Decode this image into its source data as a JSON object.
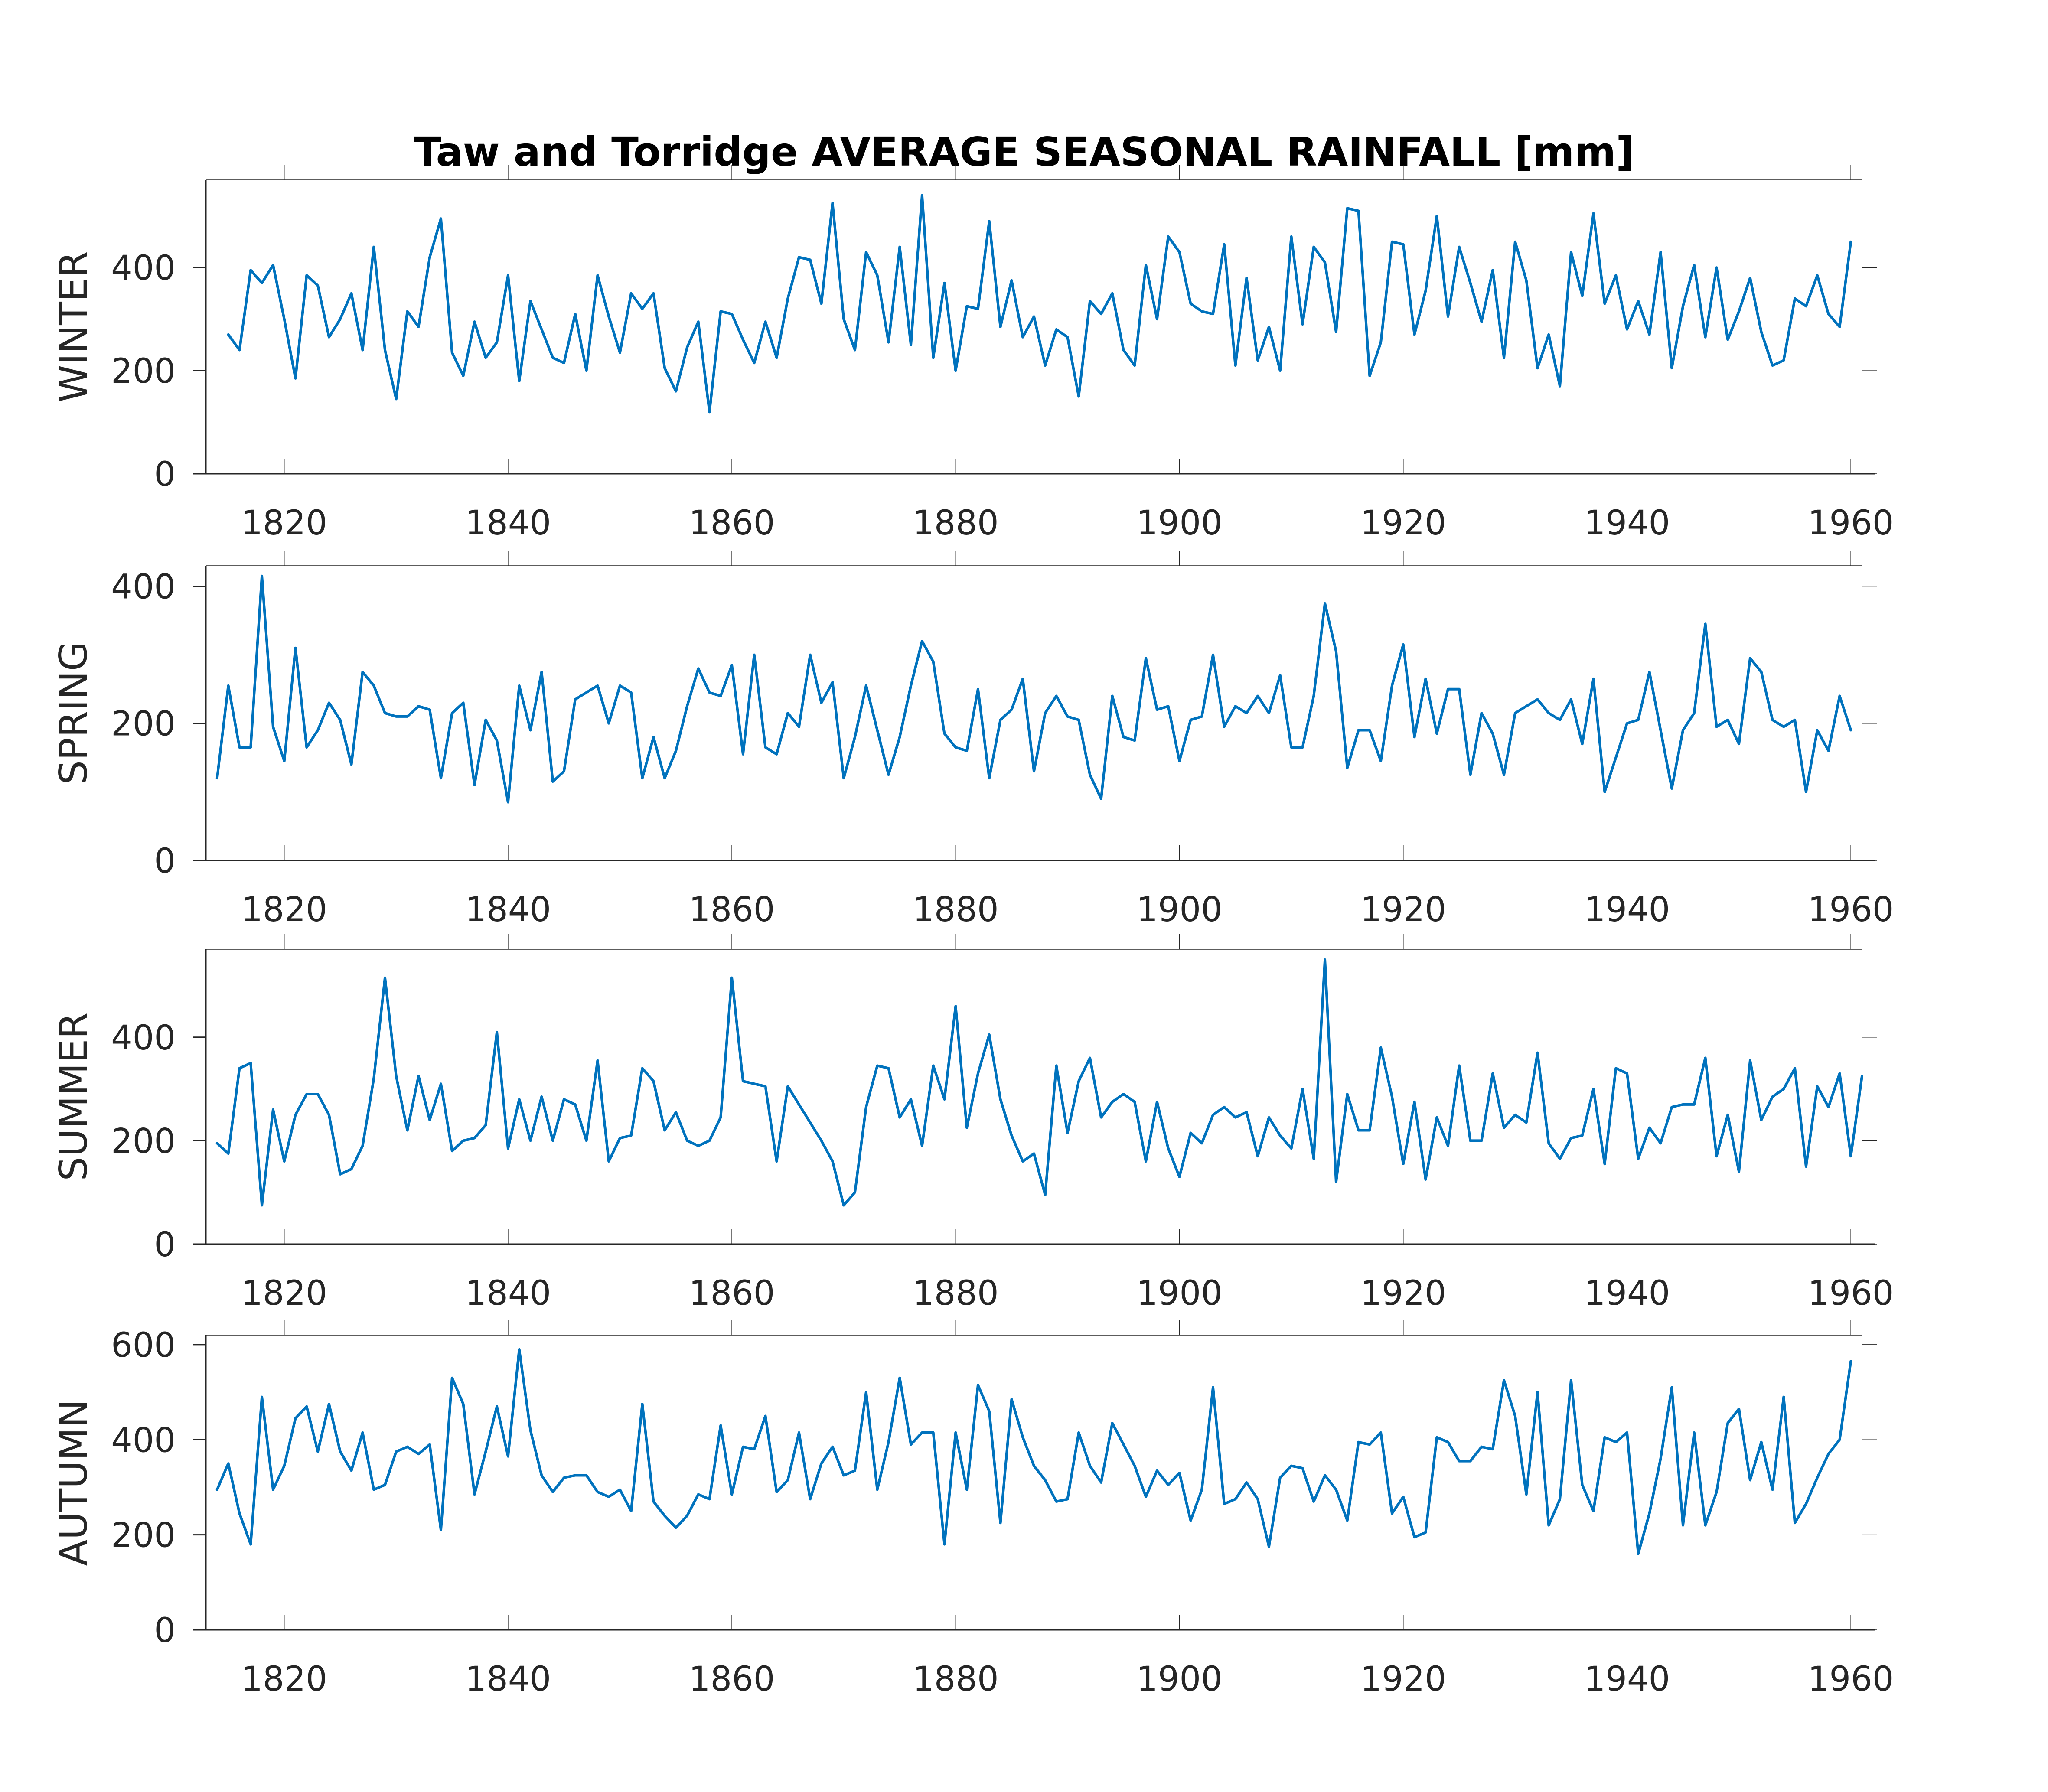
{
  "figure": {
    "title": "Taw and Torridge AVERAGE SEASONAL RAINFALL [mm]",
    "line_color": "#0072BD"
  },
  "chart_data": [
    {
      "type": "line",
      "ylabel": "WINTER",
      "xlim": [
        1813,
        1961
      ],
      "ylim": [
        0,
        570
      ],
      "xticks": [
        1820,
        1840,
        1860,
        1880,
        1900,
        1920,
        1940,
        1960
      ],
      "yticks": [
        0,
        200,
        400
      ],
      "x_start": 1815,
      "series": [
        {
          "values": [
            270,
            240,
            395,
            370,
            405,
            300,
            185,
            385,
            365,
            265,
            300,
            350,
            240,
            440,
            240,
            145,
            315,
            285,
            420,
            495,
            235,
            190,
            295,
            225,
            255,
            385,
            180,
            335,
            280,
            225,
            215,
            310,
            200,
            385,
            305,
            235,
            350,
            320,
            350,
            205,
            160,
            245,
            295,
            120,
            315,
            310,
            260,
            215,
            295,
            225,
            340,
            420,
            415,
            330,
            525,
            300,
            240,
            430,
            385,
            255,
            440,
            250,
            540,
            225,
            370,
            200,
            325,
            320,
            490,
            285,
            375,
            265,
            305,
            210,
            280,
            265,
            150,
            335,
            310,
            350,
            240,
            210,
            405,
            300,
            460,
            430,
            330,
            315,
            310,
            445,
            210,
            380,
            220,
            285,
            200,
            460,
            290,
            440,
            410,
            275,
            515,
            510,
            190,
            255,
            450,
            445,
            270,
            355,
            500,
            305,
            440,
            370,
            295,
            395,
            225,
            450,
            375,
            205,
            270,
            170,
            430,
            345,
            505,
            330,
            385,
            280,
            335,
            270,
            430,
            205,
            325,
            405,
            265,
            400,
            260,
            315,
            380,
            275,
            210,
            220,
            340,
            325,
            385,
            310,
            285,
            450
          ]
        }
      ]
    },
    {
      "type": "line",
      "ylabel": "SPRING",
      "xlim": [
        1813,
        1961
      ],
      "ylim": [
        0,
        430
      ],
      "xticks": [
        1820,
        1840,
        1860,
        1880,
        1900,
        1920,
        1940,
        1960
      ],
      "yticks": [
        0,
        200,
        400
      ],
      "x_start": 1814,
      "series": [
        {
          "values": [
            120,
            255,
            165,
            165,
            415,
            195,
            145,
            310,
            165,
            190,
            230,
            205,
            140,
            275,
            255,
            215,
            210,
            210,
            225,
            220,
            120,
            215,
            230,
            110,
            205,
            175,
            85,
            255,
            190,
            275,
            115,
            130,
            235,
            245,
            255,
            200,
            255,
            245,
            120,
            180,
            120,
            160,
            225,
            280,
            245,
            240,
            285,
            155,
            300,
            165,
            155,
            215,
            195,
            300,
            230,
            260,
            120,
            180,
            255,
            190,
            125,
            180,
            255,
            320,
            290,
            185,
            165,
            160,
            250,
            120,
            205,
            220,
            265,
            130,
            215,
            240,
            210,
            205,
            125,
            90,
            240,
            180,
            175,
            295,
            220,
            225,
            145,
            205,
            210,
            300,
            195,
            225,
            215,
            240,
            215,
            270,
            165,
            165,
            240,
            375,
            305,
            135,
            190,
            190,
            145,
            255,
            315,
            180,
            265,
            185,
            250,
            250,
            125,
            215,
            185,
            125,
            215,
            225,
            235,
            215,
            205,
            235,
            170,
            265,
            100,
            150,
            200,
            205,
            275,
            190,
            105,
            190,
            215,
            345,
            195,
            205,
            170,
            295,
            275,
            205,
            195,
            205,
            100,
            190,
            160,
            240,
            190
          ]
        }
      ]
    },
    {
      "type": "line",
      "ylabel": "SUMMER",
      "xlim": [
        1813,
        1961
      ],
      "ylim": [
        0,
        570
      ],
      "xticks": [
        1820,
        1840,
        1860,
        1880,
        1900,
        1920,
        1940,
        1960
      ],
      "yticks": [
        0,
        200,
        400
      ],
      "x_start": 1814,
      "series": [
        {
          "values": [
            195,
            175,
            340,
            350,
            75,
            260,
            160,
            250,
            290,
            290,
            250,
            135,
            145,
            190,
            320,
            515,
            325,
            220,
            325,
            240,
            310,
            180,
            200,
            205,
            230,
            410,
            185,
            280,
            200,
            285,
            200,
            280,
            270,
            200,
            355,
            160,
            205,
            210,
            340,
            315,
            220,
            255,
            200,
            190,
            200,
            245,
            515,
            315,
            310,
            305,
            160,
            305,
            270,
            235,
            200,
            160,
            75,
            100,
            265,
            345,
            340,
            245,
            280,
            190,
            345,
            280,
            460,
            225,
            330,
            405,
            280,
            210,
            160,
            175,
            95,
            345,
            215,
            315,
            360,
            245,
            275,
            290,
            275,
            160,
            275,
            185,
            130,
            215,
            195,
            250,
            265,
            245,
            255,
            170,
            245,
            210,
            185,
            300,
            165,
            550,
            120,
            290,
            220,
            220,
            380,
            285,
            155,
            275,
            125,
            245,
            190,
            345,
            200,
            200,
            330,
            225,
            250,
            235,
            370,
            195,
            165,
            205,
            210,
            300,
            155,
            340,
            330,
            165,
            225,
            195,
            265,
            270,
            270,
            360,
            170,
            250,
            140,
            355,
            240,
            285,
            300,
            340,
            150,
            305,
            265,
            330,
            170,
            325
          ]
        }
      ]
    },
    {
      "type": "line",
      "ylabel": "AUTUMN",
      "xlim": [
        1813,
        1961
      ],
      "ylim": [
        0,
        620
      ],
      "xticks": [
        1820,
        1840,
        1860,
        1880,
        1900,
        1920,
        1940,
        1960
      ],
      "yticks": [
        0,
        200,
        400,
        600
      ],
      "x_start": 1814,
      "series": [
        {
          "values": [
            295,
            350,
            245,
            180,
            490,
            295,
            345,
            445,
            470,
            375,
            475,
            375,
            335,
            415,
            295,
            305,
            375,
            385,
            370,
            390,
            210,
            530,
            475,
            285,
            375,
            470,
            365,
            590,
            420,
            325,
            290,
            320,
            325,
            325,
            290,
            280,
            295,
            250,
            475,
            270,
            240,
            215,
            240,
            285,
            275,
            430,
            285,
            385,
            380,
            450,
            290,
            315,
            415,
            275,
            350,
            385,
            325,
            335,
            500,
            295,
            395,
            530,
            390,
            415,
            415,
            180,
            415,
            295,
            515,
            460,
            225,
            485,
            405,
            345,
            315,
            270,
            275,
            415,
            345,
            310,
            435,
            390,
            345,
            280,
            335,
            305,
            330,
            230,
            295,
            510,
            265,
            275,
            310,
            275,
            175,
            320,
            345,
            340,
            270,
            325,
            295,
            230,
            395,
            390,
            415,
            245,
            280,
            195,
            205,
            405,
            395,
            355,
            355,
            385,
            380,
            525,
            450,
            285,
            500,
            220,
            275,
            525,
            305,
            250,
            405,
            395,
            415,
            160,
            245,
            360,
            510,
            220,
            415,
            220,
            290,
            435,
            465,
            315,
            395,
            295,
            490,
            225,
            265,
            320,
            370,
            400,
            565
          ]
        }
      ]
    }
  ]
}
